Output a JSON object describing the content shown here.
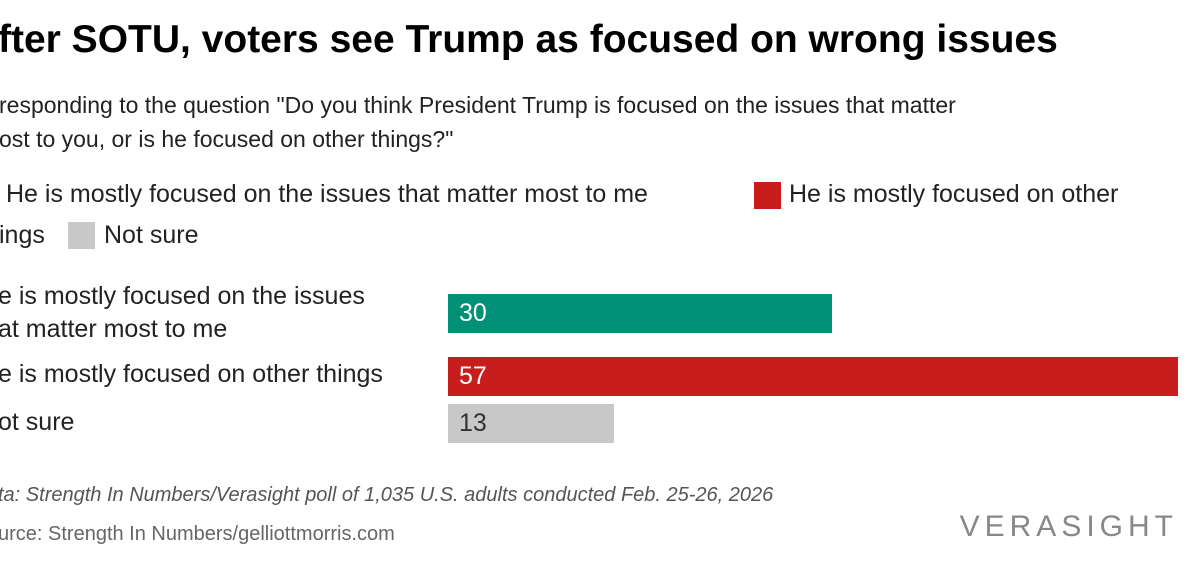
{
  "title": "fter SOTU, voters see Trump as focused on wrong issues",
  "subtitle": [
    "responding to the question \"Do you think President Trump is focused on the issues that matter",
    "ost to you, or is he focused on other things?\""
  ],
  "legend": {
    "line1_a": "He is mostly focused on the issues that matter most to me",
    "line1_b": "He is mostly focused on other",
    "line2_a": "ings",
    "line2_b": "Not sure"
  },
  "chart_data": {
    "type": "bar",
    "orientation": "horizontal",
    "categories": [
      "e is mostly focused on the issues\nat matter most to me",
      "e is mostly focused on other things",
      "ot sure"
    ],
    "category_lines": [
      [
        "e is mostly focused on the issues",
        "at matter most to me"
      ],
      [
        "e is mostly focused on other things"
      ],
      [
        "ot sure"
      ]
    ],
    "values": [
      30,
      57,
      13
    ],
    "value_labels": [
      "30",
      "57",
      "13"
    ],
    "colors": [
      "#008f77",
      "#c71e1d",
      "#c8c8c8"
    ],
    "label_colors": [
      "#ffffff",
      "#ffffff",
      "#333333"
    ],
    "xlim": [
      0,
      57
    ],
    "grid": false,
    "legend_position": "top"
  },
  "footer": {
    "note": "ta: Strength In Numbers/Verasight poll of 1,035 U.S. adults conducted Feb. 25-26, 2026",
    "source": "urce: Strength In Numbers/gelliottmorris.com",
    "logo": "VERASIGHT"
  }
}
